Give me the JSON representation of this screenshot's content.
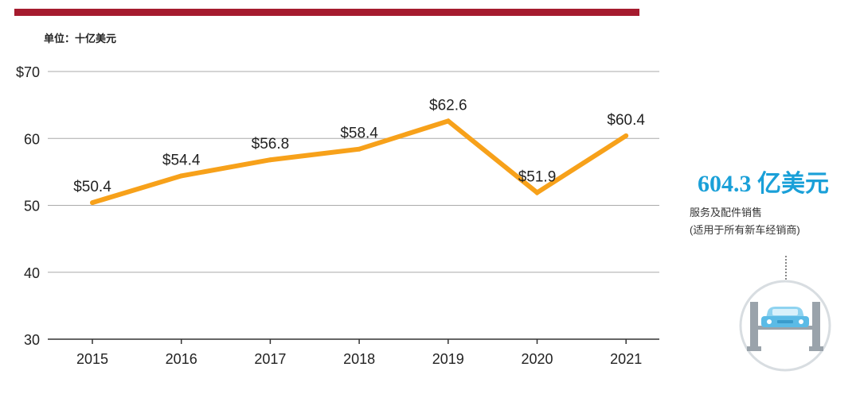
{
  "unit_label": "单位：十亿美元",
  "chart_data": {
    "type": "line",
    "categories": [
      "2015",
      "2016",
      "2017",
      "2018",
      "2019",
      "2020",
      "2021"
    ],
    "values": [
      50.4,
      54.4,
      56.8,
      58.4,
      62.6,
      51.9,
      60.4
    ],
    "data_labels": [
      "$50.4",
      "$54.4",
      "$56.8",
      "$58.4",
      "$62.6",
      "$51.9",
      "$60.4"
    ],
    "y_ticks": [
      30,
      40,
      50,
      60,
      70
    ],
    "y_tick_labels": [
      "30",
      "40",
      "50",
      "60",
      "$70"
    ],
    "ylim": [
      30,
      70
    ],
    "title": "",
    "xlabel": "",
    "ylabel": "",
    "grid": true,
    "line_color": "#f7a11a",
    "grid_color": "#aaaaaa"
  },
  "callout": {
    "value": "604.3 亿美元",
    "desc_line1": "服务及配件销售",
    "desc_line2": "(适用于所有新车经销商)",
    "accent_color": "#1aa0d8"
  },
  "icon": {
    "name": "car-lift-icon",
    "color": "#9aa3ab"
  }
}
